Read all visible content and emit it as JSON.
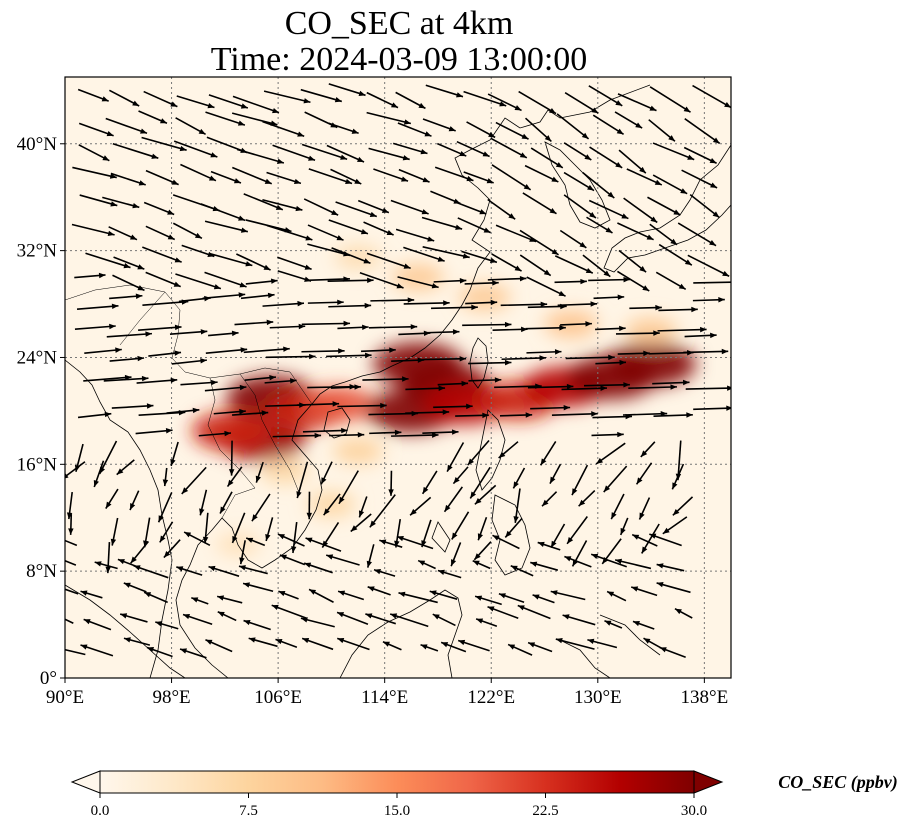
{
  "title": {
    "line1": "CO_SEC at 4km",
    "line2": "Time: 2024-03-09 13:00:00"
  },
  "map": {
    "lon_range": [
      90,
      140
    ],
    "lat_range": [
      0,
      45
    ],
    "lon_ticks": [
      {
        "value": 90,
        "label": "90°E"
      },
      {
        "value": 98,
        "label": "98°E"
      },
      {
        "value": 106,
        "label": "106°E"
      },
      {
        "value": 114,
        "label": "114°E"
      },
      {
        "value": 122,
        "label": "122°E"
      },
      {
        "value": 130,
        "label": "130°E"
      },
      {
        "value": 138,
        "label": "138°E"
      }
    ],
    "lat_ticks": [
      {
        "value": 0,
        "label": "0°"
      },
      {
        "value": 8,
        "label": "8°N"
      },
      {
        "value": 16,
        "label": "16°N"
      },
      {
        "value": 24,
        "label": "24°N"
      },
      {
        "value": 32,
        "label": "32°N"
      },
      {
        "value": 40,
        "label": "40°N"
      }
    ],
    "gridlines": true,
    "background_color": "#fff5e6",
    "coast_color": "#000000",
    "arrow_color": "#000000"
  },
  "colorbar": {
    "title": "CO_SEC (ppbv)",
    "min": 0,
    "max": 30,
    "extend": "both",
    "ticks": [
      "0.0",
      "7.5",
      "15.0",
      "22.5",
      "30.0"
    ],
    "colors": [
      "#fff7ec",
      "#fee8c8",
      "#fdd49e",
      "#fdbb84",
      "#fc8d59",
      "#ef6548",
      "#d7301f",
      "#b30000",
      "#7f0000"
    ]
  },
  "plumes": [
    {
      "lon": 105.5,
      "lat": 21.0,
      "value": 30
    },
    {
      "lon": 104.8,
      "lat": 17.8,
      "value": 28
    },
    {
      "lon": 102.5,
      "lat": 18.5,
      "value": 24
    },
    {
      "lon": 108.0,
      "lat": 20.0,
      "value": 24
    },
    {
      "lon": 110.5,
      "lat": 20.5,
      "value": 20
    },
    {
      "lon": 116.5,
      "lat": 23.5,
      "value": 30
    },
    {
      "lon": 118.5,
      "lat": 22.0,
      "value": 30
    },
    {
      "lon": 116.0,
      "lat": 20.0,
      "value": 30
    },
    {
      "lon": 120.0,
      "lat": 20.5,
      "value": 26
    },
    {
      "lon": 124.0,
      "lat": 20.8,
      "value": 24
    },
    {
      "lon": 127.5,
      "lat": 21.8,
      "value": 26
    },
    {
      "lon": 131.0,
      "lat": 22.5,
      "value": 30
    },
    {
      "lon": 134.0,
      "lat": 23.5,
      "value": 30
    },
    {
      "lon": 128.0,
      "lat": 26.5,
      "value": 10
    },
    {
      "lon": 134.0,
      "lat": 26.0,
      "value": 9
    },
    {
      "lon": 121.5,
      "lat": 28.5,
      "value": 9
    },
    {
      "lon": 116.5,
      "lat": 30.0,
      "value": 9
    },
    {
      "lon": 112.0,
      "lat": 31.5,
      "value": 6
    },
    {
      "lon": 110.0,
      "lat": 13.0,
      "value": 7
    },
    {
      "lon": 106.5,
      "lat": 15.5,
      "value": 7
    },
    {
      "lon": 103.0,
      "lat": 10.0,
      "value": 5
    },
    {
      "lon": 112.0,
      "lat": 17.0,
      "value": 8
    }
  ]
}
